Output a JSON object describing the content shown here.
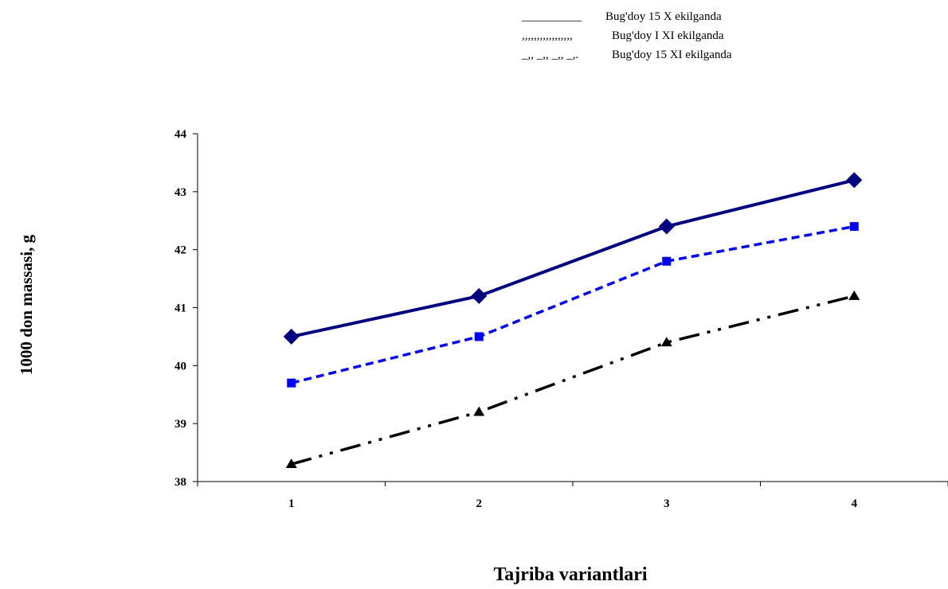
{
  "chart_data": {
    "type": "line",
    "categories": [
      "1",
      "2",
      "3",
      "4"
    ],
    "xlabel": "Tajriba variantlari",
    "ylabel": "1000 don massasi, g",
    "ylim": [
      38,
      44
    ],
    "yticks": [
      "38",
      "39",
      "40",
      "41",
      "42",
      "43",
      "44"
    ],
    "grid": false,
    "legend_position": "top-right",
    "legend": [
      {
        "key": "__________",
        "text": "Bug'doy 15 X ekilganda"
      },
      {
        "key": ",,,,,,,,,,,,,,,,,",
        "text": "Bug'doy  I XI ekilganda"
      },
      {
        "key": "_,, _,, _,, _,.",
        "text": "Bug'doy 15 XI ekilganda"
      }
    ],
    "series": [
      {
        "values": [
          40.5,
          41.2,
          42.4,
          43.2
        ],
        "color": "#000080",
        "marker": "diamond",
        "dash": "solid"
      },
      {
        "values": [
          39.7,
          40.5,
          41.8,
          42.4
        ],
        "color": "#0000FF",
        "marker": "square",
        "dash": "dashed"
      },
      {
        "values": [
          38.3,
          39.2,
          40.4,
          41.2
        ],
        "color": "#000000",
        "marker": "triangle",
        "dash": "dash-dot-dot"
      }
    ]
  }
}
